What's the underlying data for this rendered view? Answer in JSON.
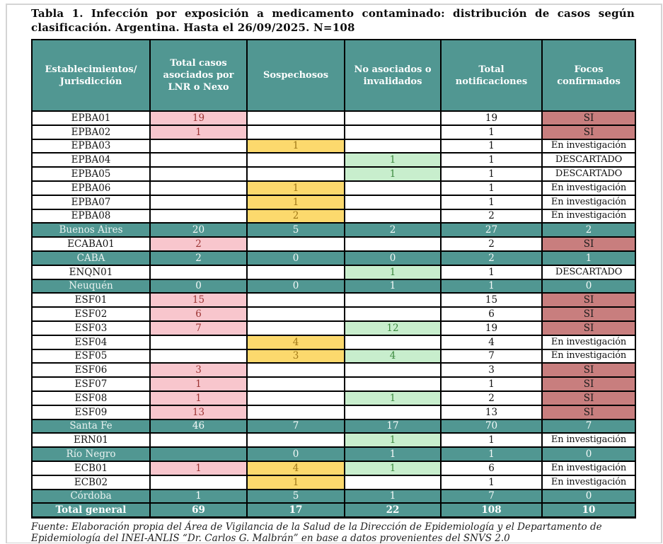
{
  "title": "Tabla 1. Infección por exposición a medicamento contaminado: distribución de casos según clasificación. Argentina. Hasta el 26/09/2025. N=108",
  "footer": "Fuente: Elaboración propia del Área de Vigilancia de la Salud de la Dirección de Epidemiología y el Departamento de Epidemiología del INEI-ANLIS “Dr. Carlos G. Malbrán” en base a datos provenientes del SNVS 2.0",
  "colors": {
    "teal_header": "#519792",
    "pink_bg": "#f8c6cd",
    "pink_text": "#9c3434",
    "yellow_bg": "#fcd96d",
    "yellow_text": "#a07818",
    "green_bg": "#c8eecd",
    "green_text": "#3d8b40",
    "si_bg": "#c87e7e",
    "grid_border": "#000000"
  },
  "chart_data": {
    "type": "table",
    "title": "Tabla 1. Infección por exposición a medicamento contaminado: distribución de casos según clasificación. Argentina. Hasta el 26/09/2025. N=108",
    "columns": [
      "Establecimientos/ Jurisdicción",
      "Total casos asociados por LNR o Nexo",
      "Sospechosos",
      "No asociados o invalidados",
      "Total notificaciones",
      "Focos confirmados"
    ],
    "rows": [
      {
        "label": "EPBA01",
        "kind": "est",
        "cells": [
          "19",
          "",
          "",
          "19",
          "SI"
        ]
      },
      {
        "label": "EPBA02",
        "kind": "est",
        "cells": [
          "1",
          "",
          "",
          "1",
          "SI"
        ]
      },
      {
        "label": "EPBA03",
        "kind": "est",
        "cells": [
          "",
          "1",
          "",
          "1",
          "En investigación"
        ]
      },
      {
        "label": "EPBA04",
        "kind": "est",
        "cells": [
          "",
          "",
          "1",
          "1",
          "DESCARTADO"
        ]
      },
      {
        "label": "EPBA05",
        "kind": "est",
        "cells": [
          "",
          "",
          "1",
          "1",
          "DESCARTADO"
        ]
      },
      {
        "label": "EPBA06",
        "kind": "est",
        "cells": [
          "",
          "1",
          "",
          "1",
          "En investigación"
        ]
      },
      {
        "label": "EPBA07",
        "kind": "est",
        "cells": [
          "",
          "1",
          "",
          "1",
          "En investigación"
        ]
      },
      {
        "label": "EPBA08",
        "kind": "est",
        "cells": [
          "",
          "2",
          "",
          "2",
          "En investigación"
        ]
      },
      {
        "label": "Buenos Aires",
        "kind": "jur",
        "cells": [
          "20",
          "5",
          "2",
          "27",
          "2"
        ]
      },
      {
        "label": "ECABA01",
        "kind": "est",
        "cells": [
          "2",
          "",
          "",
          "2",
          "SI"
        ]
      },
      {
        "label": "CABA",
        "kind": "jur",
        "cells": [
          "2",
          "0",
          "0",
          "2",
          "1"
        ]
      },
      {
        "label": "ENQN01",
        "kind": "est",
        "cells": [
          "",
          "",
          "1",
          "1",
          "DESCARTADO"
        ]
      },
      {
        "label": "Neuquén",
        "kind": "jur",
        "cells": [
          "0",
          "0",
          "1",
          "1",
          "0"
        ]
      },
      {
        "label": "ESF01",
        "kind": "est",
        "cells": [
          "15",
          "",
          "",
          "15",
          "SI"
        ]
      },
      {
        "label": "ESF02",
        "kind": "est",
        "cells": [
          "6",
          "",
          "",
          "6",
          "SI"
        ]
      },
      {
        "label": "ESF03",
        "kind": "est",
        "cells": [
          "7",
          "",
          "12",
          "19",
          "SI"
        ]
      },
      {
        "label": "ESF04",
        "kind": "est",
        "cells": [
          "",
          "4",
          "",
          "4",
          "En investigación"
        ]
      },
      {
        "label": "ESF05",
        "kind": "est",
        "cells": [
          "",
          "3",
          "4",
          "7",
          "En investigación"
        ]
      },
      {
        "label": "ESF06",
        "kind": "est",
        "cells": [
          "3",
          "",
          "",
          "3",
          "SI"
        ]
      },
      {
        "label": "ESF07",
        "kind": "est",
        "cells": [
          "1",
          "",
          "",
          "1",
          "SI"
        ]
      },
      {
        "label": "ESF08",
        "kind": "est",
        "cells": [
          "1",
          "",
          "1",
          "2",
          "SI"
        ]
      },
      {
        "label": "ESF09",
        "kind": "est",
        "cells": [
          "13",
          "",
          "",
          "13",
          "SI"
        ]
      },
      {
        "label": "Santa Fe",
        "kind": "jur",
        "cells": [
          "46",
          "7",
          "17",
          "70",
          "7"
        ]
      },
      {
        "label": "ERN01",
        "kind": "est",
        "cells": [
          "",
          "",
          "1",
          "1",
          "En investigación"
        ]
      },
      {
        "label": "Río Negro",
        "kind": "jur",
        "cells": [
          "",
          "0",
          "1",
          "1",
          "0"
        ]
      },
      {
        "label": "ECB01",
        "kind": "est",
        "cells": [
          "1",
          "4",
          "1",
          "6",
          "En investigación"
        ]
      },
      {
        "label": "ECB02",
        "kind": "est",
        "cells": [
          "",
          "1",
          "",
          "1",
          "En investigación"
        ]
      },
      {
        "label": "Córdoba",
        "kind": "jur",
        "cells": [
          "1",
          "5",
          "1",
          "7",
          "0"
        ]
      },
      {
        "label": "Total general",
        "kind": "total",
        "cells": [
          "69",
          "17",
          "22",
          "108",
          "10"
        ]
      }
    ]
  }
}
